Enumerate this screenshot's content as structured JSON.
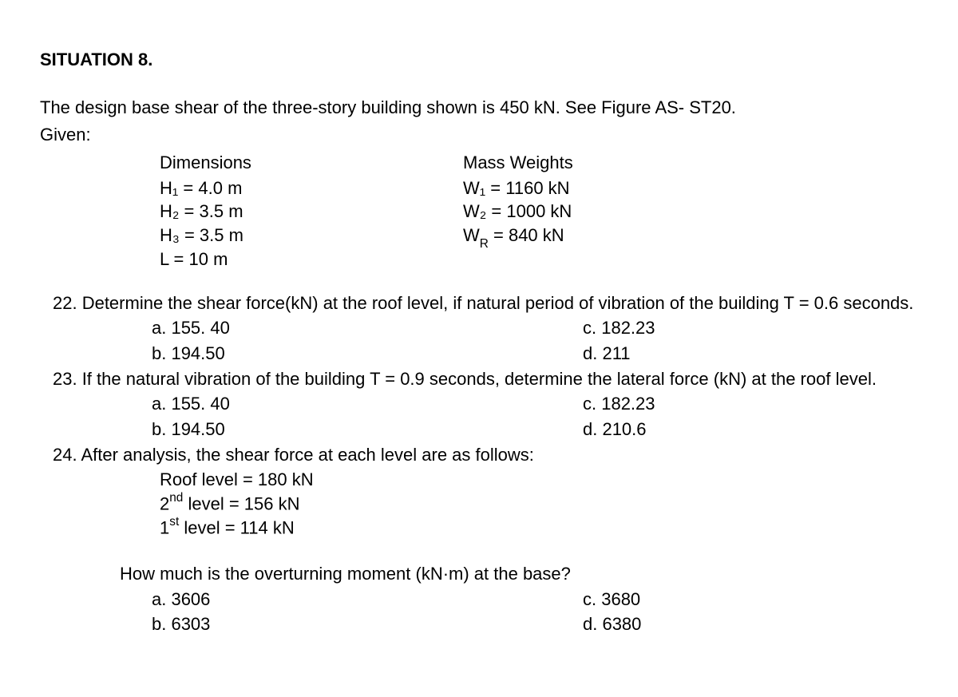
{
  "situation": {
    "title": "SITUATION 8.",
    "intro": "The design base shear of the three-story building shown is 450 kN. See Figure AS- ST20.",
    "given_label": "Given:",
    "dimensions": {
      "header": "Dimensions",
      "h1": "H₁ = 4.0 m",
      "h2": "H₂ = 3.5 m",
      "h3": "H₃ = 3.5 m",
      "l": "L = 10 m"
    },
    "mass": {
      "header": "Mass Weights",
      "w1": "W₁ = 1160 kN",
      "w2": "W₂ = 1000 kN",
      "wr_label": "W",
      "wr_sub": "R",
      "wr_rest": " = 840 kN"
    }
  },
  "q22": {
    "text": "22. Determine the shear force(kN) at the roof level, if natural period of vibration of the building T = 0.6 seconds.",
    "a": "a.   155. 40",
    "b": "b.   194.50",
    "c": "c. 182.23",
    "d": "d. 211"
  },
  "q23": {
    "text": "23. If the natural vibration of the building T = 0.9 seconds, determine the lateral force (kN) at the roof level.",
    "a": "a.   155. 40",
    "b": "b.   194.50",
    "c": "c. 182.23",
    "d": "d. 210.6"
  },
  "q24": {
    "text": "24. After analysis, the shear force at each level are as follows:",
    "roof": "Roof level = 180 kN",
    "second_pre": "2",
    "second_sup": "nd",
    "second_post": " level = 156 kN",
    "first_pre": "1",
    "first_sup": "st",
    "first_post": " level = 114 kN",
    "howmuch": "How much is the overturning moment (kN·m) at the base?",
    "a": "a.   3606",
    "b": "b.   6303",
    "c": "c. 3680",
    "d": "d. 6380"
  }
}
